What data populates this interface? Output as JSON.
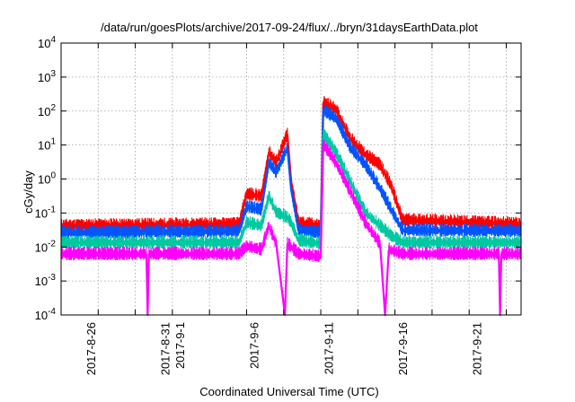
{
  "chart_data": {
    "type": "line",
    "title": "/data/run/goesPlots/archive/2017-09-24/flux/../bryn/31daysEarthData.plot",
    "xlabel": "Coordinated Universal Time (UTC)",
    "ylabel": "cGy/day",
    "yscale": "log",
    "ylim": [
      0.0001,
      10000
    ],
    "xlim": [
      "2017-08-24T00:00",
      "2017-09-24T00:00"
    ],
    "grid": true,
    "legend": "none",
    "y_tick_labels": [
      {
        "base": "10",
        "exp": "-4"
      },
      {
        "base": "10",
        "exp": "-3"
      },
      {
        "base": "10",
        "exp": "-2"
      },
      {
        "base": "10",
        "exp": "-1"
      },
      {
        "base": "10",
        "exp": "0"
      },
      {
        "base": "10",
        "exp": "1"
      },
      {
        "base": "10",
        "exp": "2"
      },
      {
        "base": "10",
        "exp": "3"
      },
      {
        "base": "10",
        "exp": "4"
      }
    ],
    "x_ticks": [
      {
        "date": "2017-08-26",
        "label": "2017-8-26"
      },
      {
        "date": "2017-08-31",
        "label": "2017-8-31"
      },
      {
        "date": "2017-09-01",
        "label": "2017-9-1"
      },
      {
        "date": "2017-09-06",
        "label": "2017-9-6"
      },
      {
        "date": "2017-09-11",
        "label": "2017-9-11"
      },
      {
        "date": "2017-09-16",
        "label": "2017-9-16"
      },
      {
        "date": "2017-09-21",
        "label": "2017-9-21"
      }
    ],
    "series": [
      {
        "color": "#ff0000",
        "points": [
          [
            "2017-08-24",
            0.04
          ],
          [
            "2017-09-05",
            0.045
          ],
          [
            "2017-09-05T12:00",
            0.35
          ],
          [
            "2017-09-06T12:00",
            0.3
          ],
          [
            "2017-09-07T00:00",
            6
          ],
          [
            "2017-09-07T12:00",
            3
          ],
          [
            "2017-09-08T06:00",
            20
          ],
          [
            "2017-09-08T12:00",
            0.9
          ],
          [
            "2017-09-09T00:00",
            0.05
          ],
          [
            "2017-09-10T12:00",
            0.04
          ],
          [
            "2017-09-10T16:00",
            170
          ],
          [
            "2017-09-11T12:00",
            110
          ],
          [
            "2017-09-12T12:00",
            15
          ],
          [
            "2017-09-13T12:00",
            5
          ],
          [
            "2017-09-14T12:00",
            2.5
          ],
          [
            "2017-09-15T06:00",
            0.6
          ],
          [
            "2017-09-16T00:00",
            0.06
          ],
          [
            "2017-09-24",
            0.045
          ]
        ]
      },
      {
        "color": "#0055ff",
        "points": [
          [
            "2017-08-24",
            0.025
          ],
          [
            "2017-09-05",
            0.028
          ],
          [
            "2017-09-05T12:00",
            0.15
          ],
          [
            "2017-09-06T12:00",
            0.12
          ],
          [
            "2017-09-07T00:00",
            3
          ],
          [
            "2017-09-07T12:00",
            1.5
          ],
          [
            "2017-09-08T06:00",
            8
          ],
          [
            "2017-09-08T12:00",
            0.5
          ],
          [
            "2017-09-09T00:00",
            0.03
          ],
          [
            "2017-09-10T12:00",
            0.025
          ],
          [
            "2017-09-10T16:00",
            100
          ],
          [
            "2017-09-11T12:00",
            60
          ],
          [
            "2017-09-12T12:00",
            8
          ],
          [
            "2017-09-13T12:00",
            2.5
          ],
          [
            "2017-09-14T12:00",
            0.5
          ],
          [
            "2017-09-15T06:00",
            0.12
          ],
          [
            "2017-09-16T00:00",
            0.03
          ],
          [
            "2017-09-24",
            0.028
          ]
        ]
      },
      {
        "color": "#00c8a0",
        "points": [
          [
            "2017-08-24",
            0.013
          ],
          [
            "2017-09-05",
            0.013
          ],
          [
            "2017-09-05T12:00",
            0.05
          ],
          [
            "2017-09-06T12:00",
            0.04
          ],
          [
            "2017-09-07T00:00",
            0.3
          ],
          [
            "2017-09-07T12:00",
            0.1
          ],
          [
            "2017-09-08T06:00",
            0.07
          ],
          [
            "2017-09-08T12:00",
            0.05
          ],
          [
            "2017-09-09T00:00",
            0.015
          ],
          [
            "2017-09-10T12:00",
            0.012
          ],
          [
            "2017-09-10T16:00",
            20
          ],
          [
            "2017-09-11T12:00",
            6
          ],
          [
            "2017-09-12T12:00",
            0.8
          ],
          [
            "2017-09-13T12:00",
            0.1
          ],
          [
            "2017-09-14T12:00",
            0.04
          ],
          [
            "2017-09-15T06:00",
            0.02
          ],
          [
            "2017-09-16T00:00",
            0.013
          ],
          [
            "2017-09-24",
            0.013
          ]
        ]
      },
      {
        "color": "#ff00ff",
        "points": [
          [
            "2017-08-24",
            0.006
          ],
          [
            "2017-08-29T18:00",
            0.006
          ],
          [
            "2017-08-29T20:00",
            0.0001
          ],
          [
            "2017-08-29T22:00",
            0.006
          ],
          [
            "2017-09-05",
            0.006
          ],
          [
            "2017-09-05T12:00",
            0.01
          ],
          [
            "2017-09-06T12:00",
            0.008
          ],
          [
            "2017-09-07T00:00",
            0.04
          ],
          [
            "2017-09-07T12:00",
            0.012
          ],
          [
            "2017-09-08T02:00",
            0.0001
          ],
          [
            "2017-09-08T06:00",
            0.012
          ],
          [
            "2017-09-09T00:00",
            0.006
          ],
          [
            "2017-09-10T12:00",
            0.005
          ],
          [
            "2017-09-10T16:00",
            10
          ],
          [
            "2017-09-11T12:00",
            3
          ],
          [
            "2017-09-12T12:00",
            0.4
          ],
          [
            "2017-09-13T12:00",
            0.05
          ],
          [
            "2017-09-14T12:00",
            0.012
          ],
          [
            "2017-09-14T20:00",
            0.0001
          ],
          [
            "2017-09-15T02:00",
            0.008
          ],
          [
            "2017-09-16T00:00",
            0.006
          ],
          [
            "2017-09-22T12:00",
            0.006
          ],
          [
            "2017-09-22T14:00",
            0.0001
          ],
          [
            "2017-09-22T16:00",
            0.006
          ],
          [
            "2017-09-24",
            0.006
          ]
        ]
      }
    ]
  }
}
